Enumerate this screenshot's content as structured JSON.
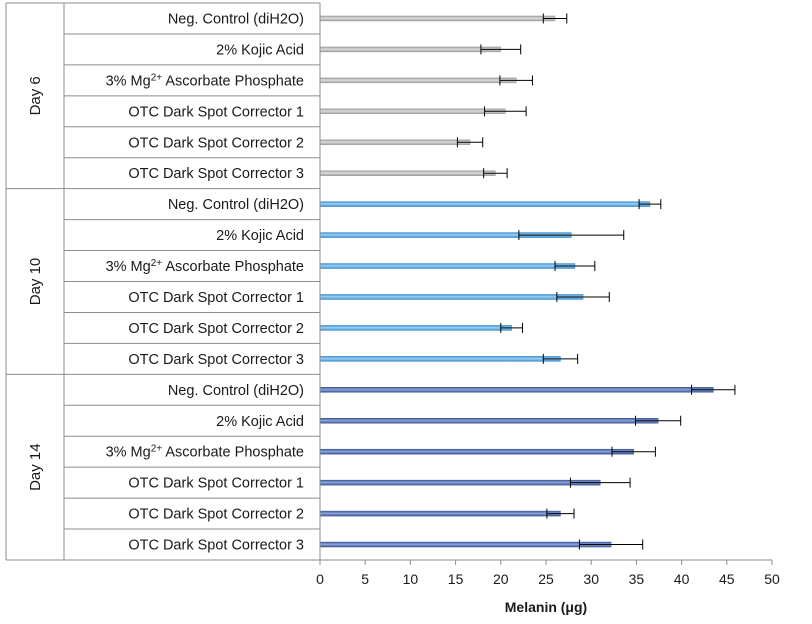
{
  "chart_data": {
    "type": "bar",
    "orientation": "horizontal",
    "xlabel": "Melanin (μg)",
    "xlim": [
      0,
      50
    ],
    "xticks": [
      0,
      5,
      10,
      15,
      20,
      25,
      30,
      35,
      40,
      45,
      50
    ],
    "grid": false,
    "legend": "none",
    "groups": [
      {
        "name": "Day 6",
        "color": "#9e9e9e",
        "highlight": "#dcdcdc",
        "categories": [
          {
            "pre": "Neg. Control (diH2O)",
            "sup": "",
            "post": ""
          },
          {
            "pre": "2% Kojic Acid",
            "sup": "",
            "post": ""
          },
          {
            "pre": "3% Mg",
            "sup": "2+",
            "post": " Ascorbate Phosphate"
          },
          {
            "pre": "OTC Dark Spot Corrector 1",
            "sup": "",
            "post": ""
          },
          {
            "pre": "OTC Dark Spot Corrector 2",
            "sup": "",
            "post": ""
          },
          {
            "pre": "OTC Dark Spot Corrector 3",
            "sup": "",
            "post": ""
          }
        ],
        "values": [
          26.0,
          20.0,
          21.7,
          20.5,
          16.6,
          19.4
        ],
        "errors": [
          1.3,
          2.2,
          1.8,
          2.3,
          1.4,
          1.3
        ]
      },
      {
        "name": "Day 10",
        "color": "#3a8fd0",
        "highlight": "#9fd0f3",
        "categories": [
          {
            "pre": "Neg. Control (diH2O)",
            "sup": "",
            "post": ""
          },
          {
            "pre": "2% Kojic Acid",
            "sup": "",
            "post": ""
          },
          {
            "pre": "3% Mg",
            "sup": "2+",
            "post": " Ascorbate Phosphate"
          },
          {
            "pre": "OTC Dark Spot Corrector 1",
            "sup": "",
            "post": ""
          },
          {
            "pre": "OTC Dark Spot Corrector 2",
            "sup": "",
            "post": ""
          },
          {
            "pre": "OTC Dark Spot Corrector 3",
            "sup": "",
            "post": ""
          }
        ],
        "values": [
          36.5,
          27.8,
          28.2,
          29.1,
          21.2,
          26.6
        ],
        "errors": [
          1.2,
          5.8,
          2.2,
          2.9,
          1.2,
          1.9
        ]
      },
      {
        "name": "Day 14",
        "color": "#3b5597",
        "highlight": "#8ea6d9",
        "categories": [
          {
            "pre": "Neg. Control (diH2O)",
            "sup": "",
            "post": ""
          },
          {
            "pre": "2% Kojic Acid",
            "sup": "",
            "post": ""
          },
          {
            "pre": "3% Mg",
            "sup": "2+",
            "post": " Ascorbate Phosphate"
          },
          {
            "pre": "OTC Dark Spot Corrector 1",
            "sup": "",
            "post": ""
          },
          {
            "pre": "OTC Dark Spot Corrector 2",
            "sup": "",
            "post": ""
          },
          {
            "pre": "OTC Dark Spot Corrector 3",
            "sup": "",
            "post": ""
          }
        ],
        "values": [
          43.5,
          37.4,
          34.7,
          31.0,
          26.6,
          32.2
        ],
        "errors": [
          2.4,
          2.5,
          2.4,
          3.3,
          1.5,
          3.5
        ]
      }
    ]
  }
}
